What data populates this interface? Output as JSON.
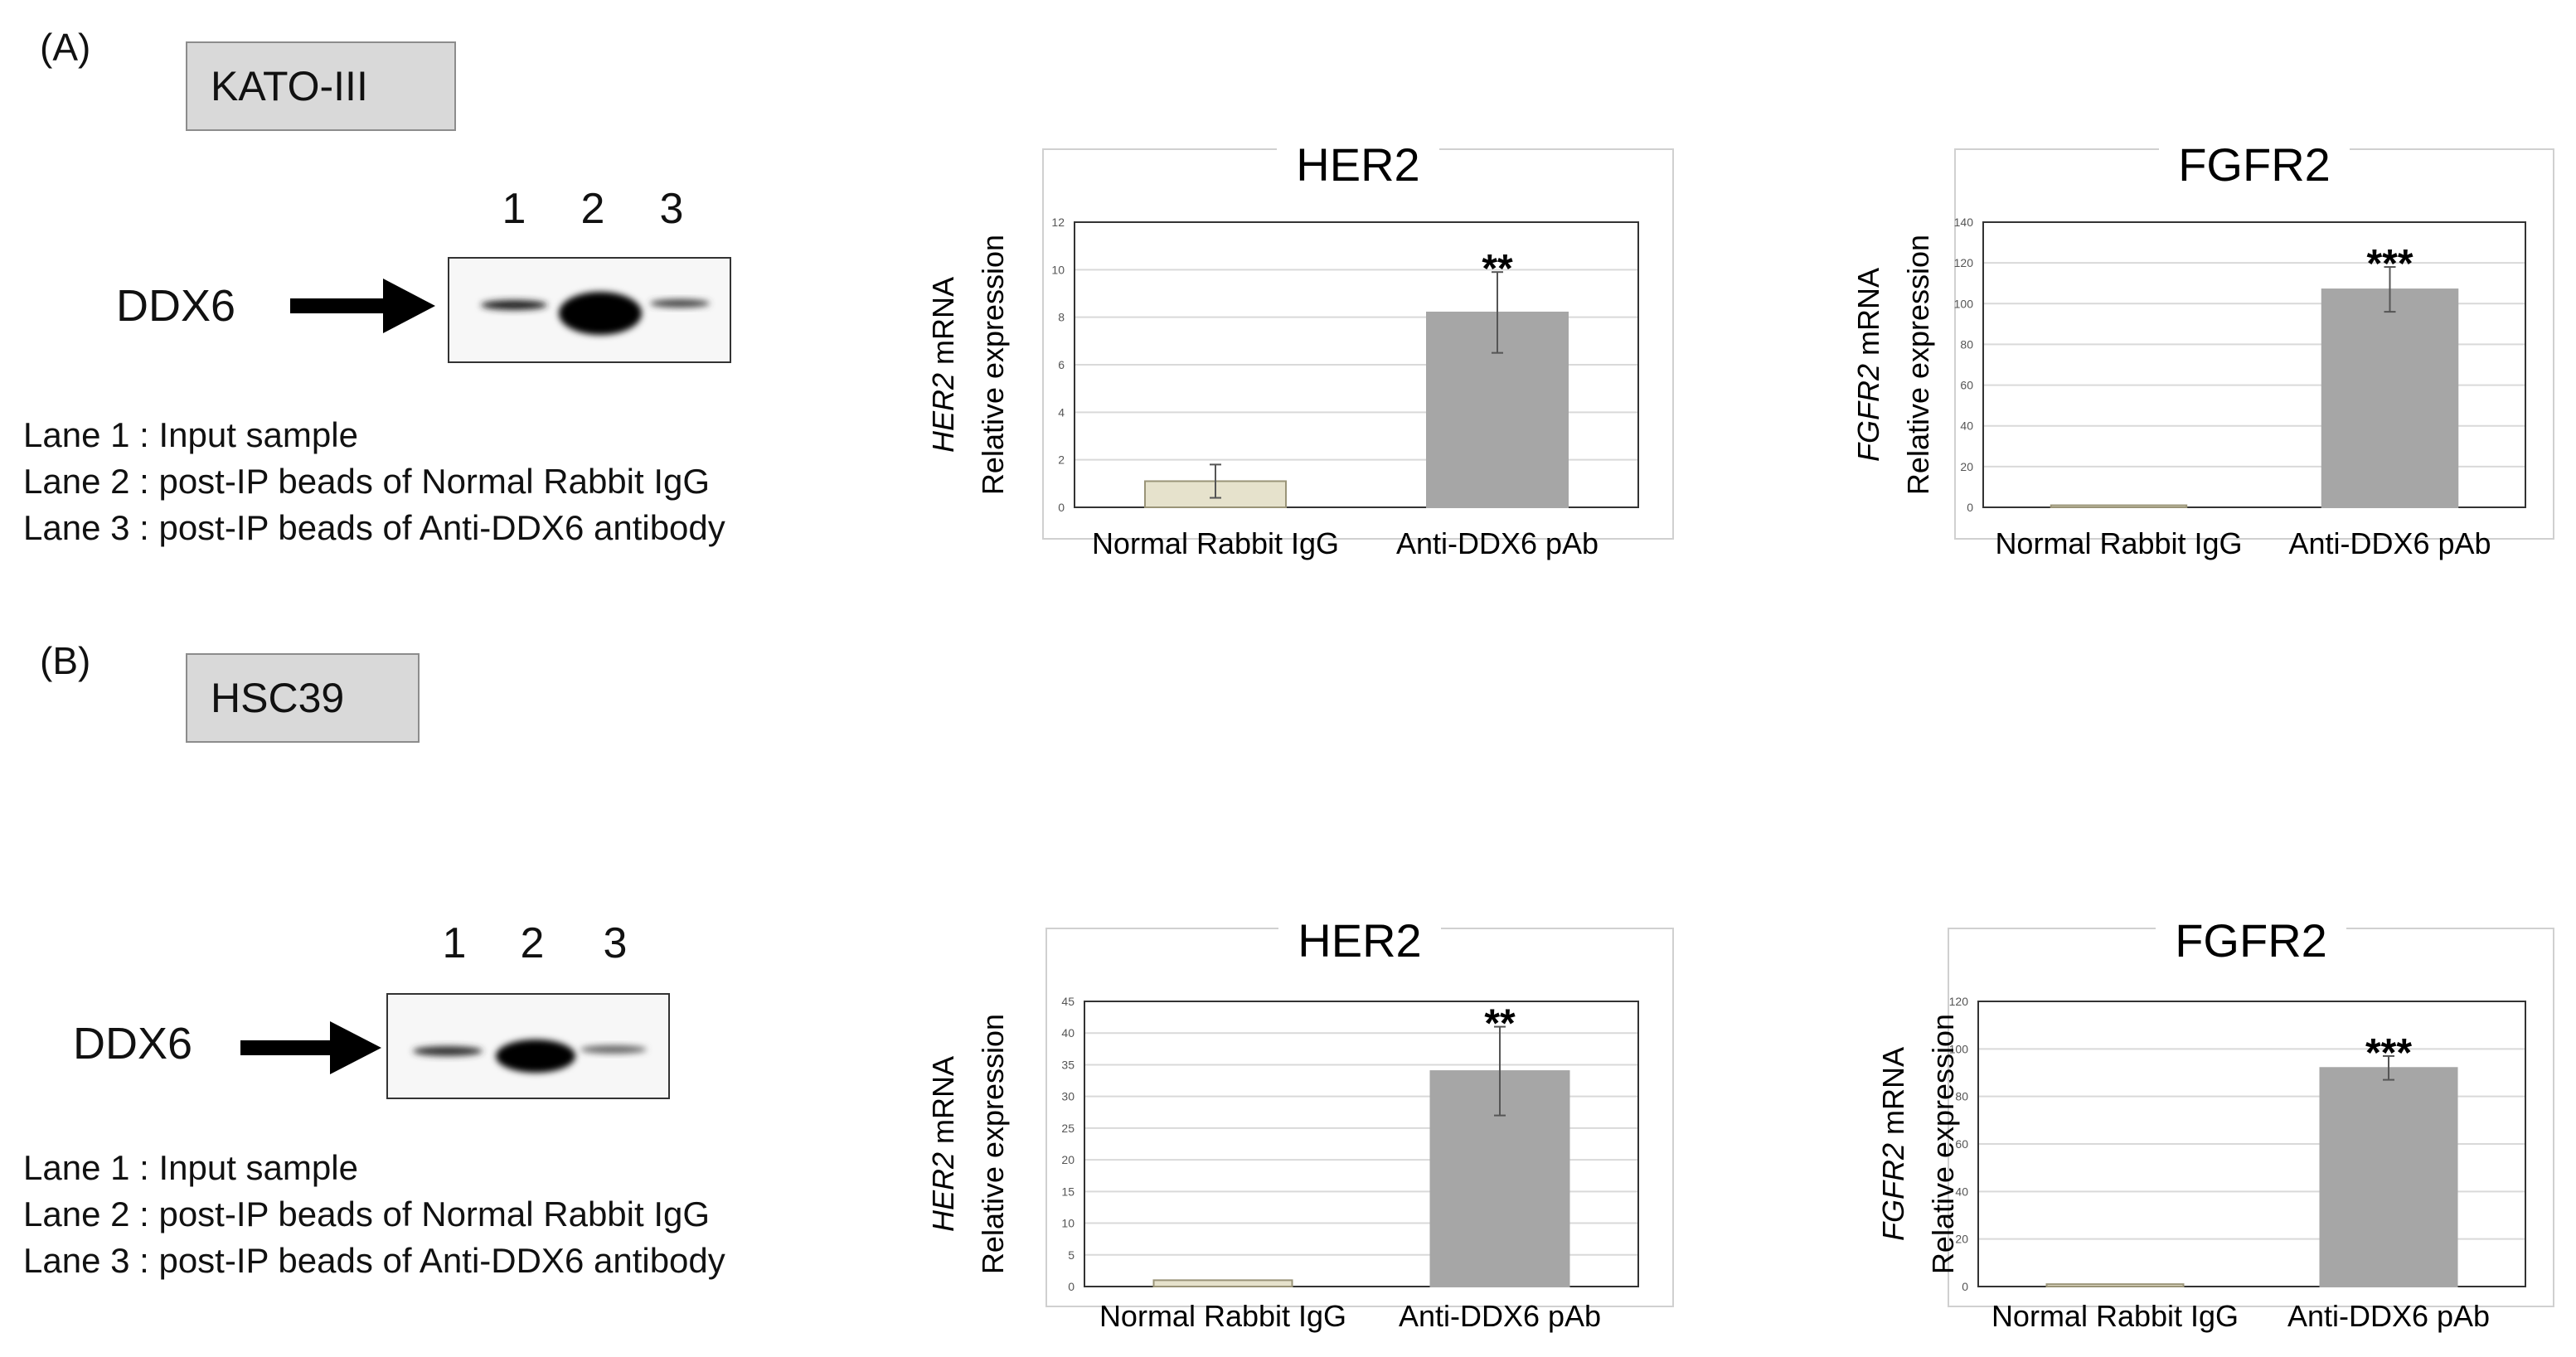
{
  "panelA": {
    "letter": "(A)",
    "cell_line": "KATO-III",
    "lanes": [
      "1",
      "2",
      "3"
    ],
    "protein": "DDX6",
    "legend": [
      "Lane 1 : Input sample",
      "Lane 2 : post-IP beads of Normal Rabbit IgG",
      "Lane 3 : post-IP beads of Anti-DDX6 antibody"
    ]
  },
  "panelB": {
    "letter": "(B)",
    "cell_line": "HSC39",
    "lanes": [
      "1",
      "2",
      "3"
    ],
    "protein": "DDX6",
    "legend": [
      "Lane 1 : Input sample",
      "Lane 2 : post-IP beads of Normal Rabbit IgG",
      "Lane 3 : post-IP beads of Anti-DDX6 antibody"
    ]
  },
  "colors": {
    "igg_bar": "#e6e2cc",
    "igg_border": "#9a9478",
    "anti_bar": "#a6a6a6",
    "grid": "#d9d9d9"
  },
  "chart_data": [
    {
      "id": "A-HER2",
      "type": "bar",
      "title": "HER2",
      "ylabel_gene": "HER2",
      "ylabel_rest": " mRNA",
      "ylabel2": "Relative expression",
      "categories": [
        "Normal Rabbit IgG",
        "Anti-DDX6 pAb"
      ],
      "values": [
        1.1,
        8.2
      ],
      "errors": [
        0.7,
        1.7
      ],
      "ylim": [
        0,
        12
      ],
      "yticks": [
        0,
        2,
        4,
        6,
        8,
        10,
        12
      ],
      "significance": [
        "",
        "**"
      ],
      "grid": true
    },
    {
      "id": "A-FGFR2",
      "type": "bar",
      "title": "FGFR2",
      "ylabel_gene": "FGFR2",
      "ylabel_rest": " mRNA",
      "ylabel2": "Relative expression",
      "categories": [
        "Normal Rabbit IgG",
        "Anti-DDX6 pAb"
      ],
      "values": [
        1,
        107
      ],
      "errors": [
        0,
        11
      ],
      "ylim": [
        0,
        140
      ],
      "yticks": [
        0,
        20,
        40,
        60,
        80,
        100,
        120,
        140
      ],
      "significance": [
        "",
        "***"
      ],
      "grid": true
    },
    {
      "id": "B-HER2",
      "type": "bar",
      "title": "HER2",
      "ylabel_gene": "HER2",
      "ylabel_rest": " mRNA",
      "ylabel2": "Relative expression",
      "categories": [
        "Normal Rabbit IgG",
        "Anti-DDX6 pAb"
      ],
      "values": [
        1,
        34
      ],
      "errors": [
        0,
        7
      ],
      "ylim": [
        0,
        45
      ],
      "yticks": [
        0,
        5,
        10,
        15,
        20,
        25,
        30,
        35,
        40,
        45
      ],
      "significance": [
        "",
        "**"
      ],
      "grid": true
    },
    {
      "id": "B-FGFR2",
      "type": "bar",
      "title": "FGFR2",
      "ylabel_gene": "FGFR2",
      "ylabel_rest": " mRNA",
      "ylabel2": "Relative expression",
      "categories": [
        "Normal Rabbit IgG",
        "Anti-DDX6 pAb"
      ],
      "values": [
        1,
        92
      ],
      "errors": [
        0,
        5
      ],
      "ylim": [
        0,
        120
      ],
      "yticks": [
        0,
        20,
        40,
        60,
        80,
        100,
        120
      ],
      "significance": [
        "",
        "***"
      ],
      "grid": true
    }
  ]
}
